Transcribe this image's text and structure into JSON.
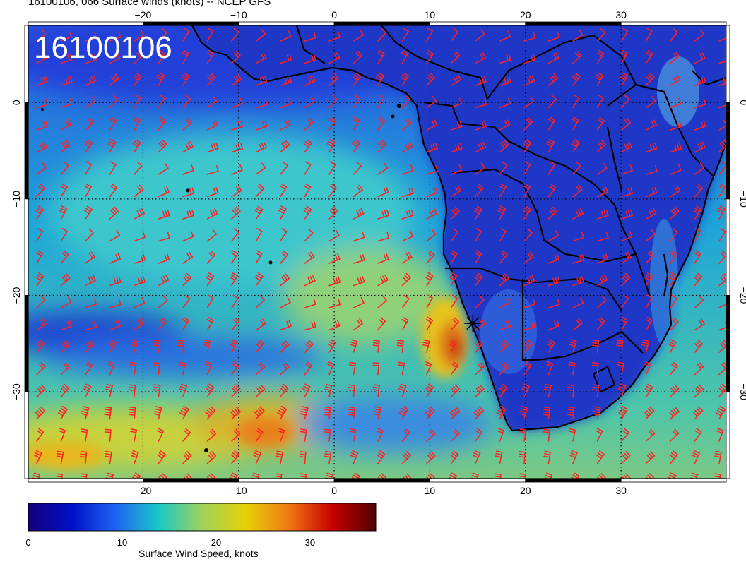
{
  "title": "16100106, 066 Surface winds (knots) -- NCEP GFS",
  "stamp": "16100106",
  "map": {
    "lon_range": [
      -32,
      41
    ],
    "lat_range": [
      -39,
      8
    ],
    "lon_ticks": [
      -20,
      -10,
      0,
      10,
      20,
      30
    ],
    "lon_tick_labels": [
      "−20",
      "−10",
      "0",
      "10",
      "20",
      "30"
    ],
    "lat_ticks": [
      0,
      -10,
      -20,
      -30
    ],
    "lat_tick_labels": [
      "0",
      "−10",
      "−20",
      "−30"
    ],
    "grid": "dotted",
    "wind_barb_color": "#ff2020",
    "marker_icon": "asterisk-icon",
    "marker_lon": 14.5,
    "marker_lat": -22.9,
    "jet_core_knots": 30
  },
  "colorbar": {
    "label": "Surface Wind Speed, knots",
    "range": [
      0,
      37
    ],
    "ticks": [
      0,
      10,
      20,
      30
    ],
    "tick_labels": [
      "0",
      "10",
      "20",
      "30"
    ],
    "colors": [
      "#15007a",
      "#0010c8",
      "#1e63f0",
      "#19c8c8",
      "#9ed25a",
      "#e6d205",
      "#f07814",
      "#c80000",
      "#500000"
    ]
  }
}
